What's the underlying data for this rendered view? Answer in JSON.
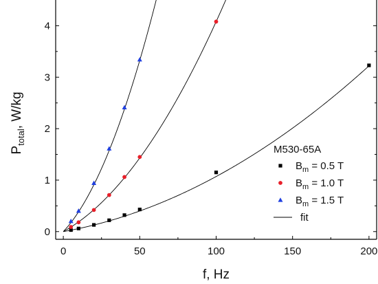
{
  "chart_data": {
    "type": "scatter",
    "xlabel": "f, Hz",
    "ylabel_main": "P",
    "ylabel_sub": "total",
    "ylabel_rest": ", W/kg",
    "xlim": [
      -5,
      205
    ],
    "ylim": [
      -0.15,
      4.5
    ],
    "x_ticks": [
      0,
      50,
      100,
      150,
      200
    ],
    "y_ticks": [
      0,
      1,
      2,
      3,
      4
    ],
    "legend": {
      "title": "M530-65A",
      "placement": "bottom-right",
      "fit_label": "fit"
    },
    "series": [
      {
        "label_main": "B",
        "label_sub": "m",
        "label_rest": " = 0.5 T",
        "marker": "square",
        "color": "#000000",
        "x": [
          5,
          10,
          20,
          30,
          40,
          50,
          100,
          200
        ],
        "y": [
          0.03,
          0.06,
          0.13,
          0.22,
          0.32,
          0.43,
          1.15,
          3.23
        ],
        "fit": {
          "a": 0.0053,
          "b": 5.4e-05
        }
      },
      {
        "label_main": "B",
        "label_sub": "m",
        "label_rest": " = 1.0 T",
        "marker": "circle",
        "color": "#e8202a",
        "x": [
          5,
          10,
          20,
          30,
          40,
          50,
          100
        ],
        "y": [
          0.09,
          0.18,
          0.42,
          0.71,
          1.06,
          1.45,
          4.08
        ],
        "fit": {
          "a": 0.0164,
          "b": 0.000244
        }
      },
      {
        "label_main": "B",
        "label_sub": "m",
        "label_rest": " = 1.5 T",
        "marker": "triangle",
        "color": "#1f3fe0",
        "x": [
          5,
          10,
          20,
          30,
          40,
          50
        ],
        "y": [
          0.2,
          0.4,
          0.94,
          1.61,
          2.41,
          3.34
        ],
        "fit": {
          "a": 0.0315,
          "b": 0.0007
        }
      }
    ]
  }
}
